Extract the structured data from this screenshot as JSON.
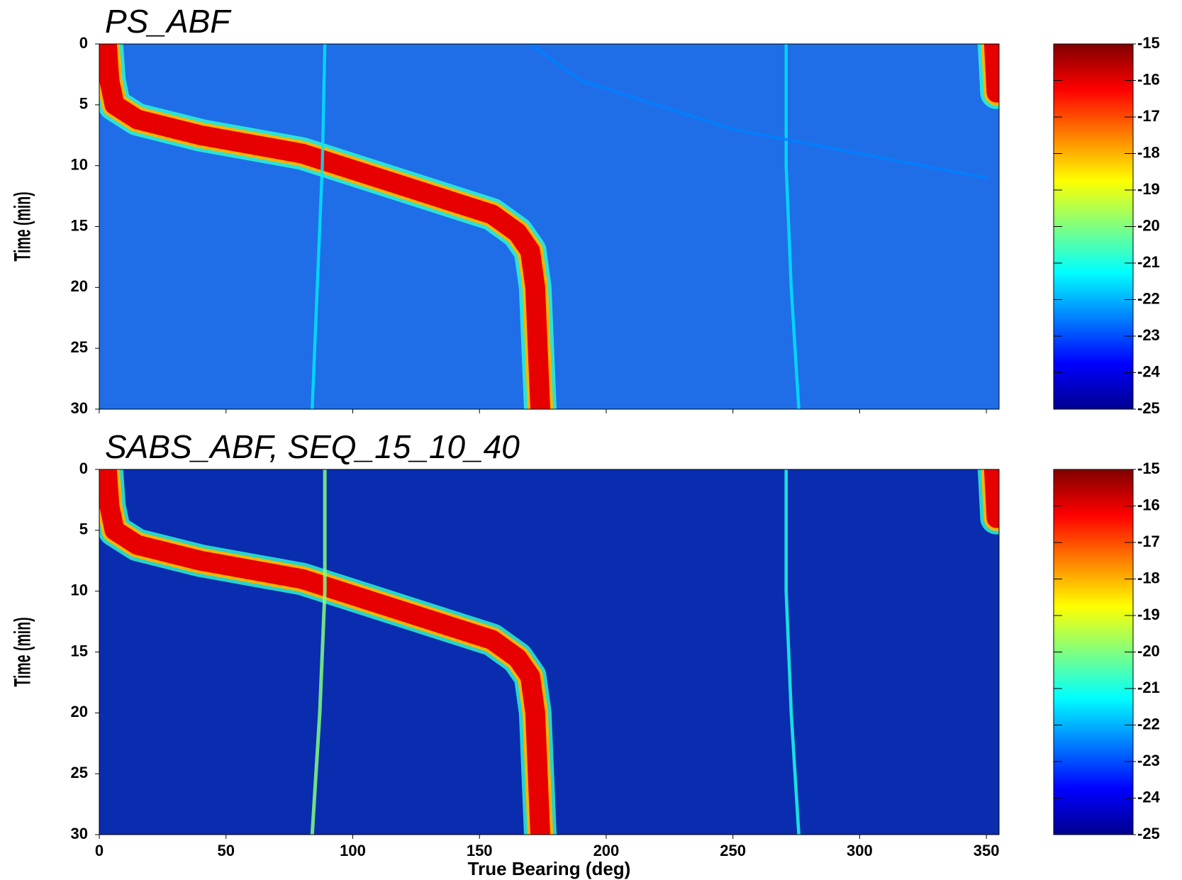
{
  "chart_data": [
    {
      "type": "bearing-time",
      "title": "PS_ABF",
      "y_label": "Time (min)",
      "background": "#1f6ee8",
      "xlim": [
        0,
        355
      ],
      "xticks": [
        0,
        50,
        100,
        150,
        200,
        250,
        300,
        350
      ],
      "show_xtick_labels": false,
      "ylim": [
        0,
        30
      ],
      "yticks": [
        0,
        5,
        10,
        15,
        20,
        25,
        30
      ],
      "clim": [
        -25,
        -15
      ],
      "cticks": [
        -15,
        -16,
        -17,
        -18,
        -19,
        -20,
        -21,
        -22,
        -23,
        -24,
        -25
      ],
      "colormap": [
        "#00008f",
        "#0000ff",
        "#0080ff",
        "#00ffff",
        "#80ff80",
        "#ffff00",
        "#ff8000",
        "#ff0000",
        "#800000"
      ],
      "tracks": [
        {
          "level": -16,
          "bearing": [
            3,
            4,
            6,
            15,
            40,
            80,
            110,
            140,
            155,
            165,
            170,
            172,
            173,
            174
          ],
          "time": [
            0,
            3,
            5,
            6.2,
            7.5,
            9,
            11,
            13,
            14,
            15.5,
            17,
            20,
            25,
            30
          ]
        },
        {
          "level": -21.5,
          "bearing": [
            89,
            88,
            86,
            84
          ],
          "time": [
            0,
            10,
            20,
            30
          ]
        },
        {
          "level": -21.5,
          "bearing": [
            271,
            271,
            273,
            276
          ],
          "time": [
            0,
            10,
            20,
            30
          ]
        },
        {
          "level": -22.5,
          "bearing": [
            170,
            190,
            250,
            300,
            350
          ],
          "time": [
            0,
            3,
            7,
            9,
            11
          ]
        },
        {
          "level": -16,
          "bearing": [
            353,
            354
          ],
          "time": [
            0,
            4
          ]
        }
      ]
    },
    {
      "type": "bearing-time",
      "title": "SABS_ABF, SEQ_15_10_40",
      "y_label": "Time (min)",
      "x_label": "True Bearing (deg)",
      "background": "#0a2cae",
      "xlim": [
        0,
        355
      ],
      "xticks": [
        0,
        50,
        100,
        150,
        200,
        250,
        300,
        350
      ],
      "show_xtick_labels": true,
      "ylim": [
        0,
        30
      ],
      "yticks": [
        0,
        5,
        10,
        15,
        20,
        25,
        30
      ],
      "clim": [
        -25,
        -15
      ],
      "cticks": [
        -15,
        -16,
        -17,
        -18,
        -19,
        -20,
        -21,
        -22,
        -23,
        -24,
        -25
      ],
      "colormap": [
        "#00008f",
        "#0000ff",
        "#0080ff",
        "#00ffff",
        "#80ff80",
        "#ffff00",
        "#ff8000",
        "#ff0000",
        "#800000"
      ],
      "tracks": [
        {
          "level": -16,
          "bearing": [
            3,
            4,
            6,
            15,
            40,
            80,
            110,
            140,
            155,
            165,
            170,
            172,
            173,
            174
          ],
          "time": [
            0,
            3,
            5,
            6.2,
            7.5,
            9,
            11,
            13,
            14,
            15.5,
            17,
            20,
            25,
            30
          ]
        },
        {
          "level": -20,
          "bearing": [
            89,
            89,
            87,
            84
          ],
          "time": [
            0,
            10,
            20,
            30
          ]
        },
        {
          "level": -21,
          "bearing": [
            271,
            271,
            273,
            276
          ],
          "time": [
            0,
            10,
            20,
            30
          ]
        },
        {
          "level": -16,
          "bearing": [
            353,
            354
          ],
          "time": [
            0,
            4
          ]
        }
      ]
    }
  ]
}
